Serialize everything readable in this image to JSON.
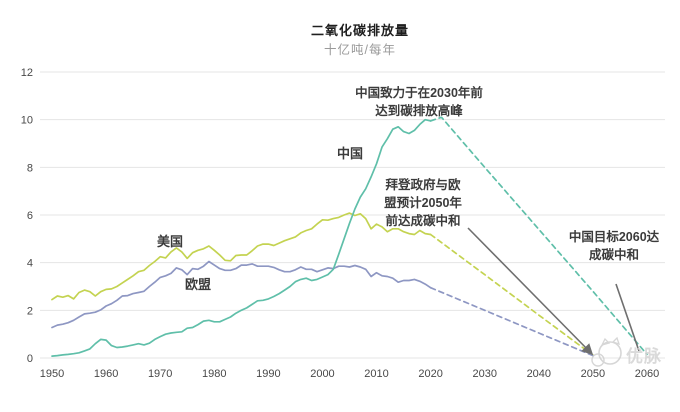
{
  "title": "二氧化碳排放量",
  "subtitle": "十亿吨/每年",
  "series_labels": {
    "usa": "美国",
    "eu": "欧盟",
    "china": "中国"
  },
  "annotations": {
    "china_peak": {
      "lines": [
        "中国致力于在2030年前",
        "达到碳排放高峰"
      ]
    },
    "biden_eu": {
      "lines": [
        "拜登政府与欧",
        "盟预计2050年",
        "前达成碳中和"
      ]
    },
    "china_2060": {
      "lines": [
        "中国目标2060达",
        "成碳中和"
      ]
    }
  },
  "watermark": {
    "text": "优脉"
  },
  "colors": {
    "china": "#5fbfa9",
    "usa": "#c4d351",
    "eu": "#8e97c3",
    "grid": "#e5e5e5",
    "axis_text": "#484848",
    "annotation_text": "#3b3b3b",
    "leader_line": "#6f6f6f",
    "watermark": "#d0d0d0"
  },
  "chart_data": {
    "type": "line",
    "title": "二氧化碳排放量",
    "ylabel": "十亿吨/每年",
    "xlabel": "",
    "xlim": [
      1948,
      2063
    ],
    "ylim": [
      0,
      12
    ],
    "yticks": [
      0,
      2,
      4,
      6,
      8,
      10,
      12
    ],
    "xticks": [
      1950,
      1960,
      1970,
      1980,
      1990,
      2000,
      2010,
      2020,
      2030,
      2040,
      2050,
      2060
    ],
    "grid": "horizontal",
    "legend_position": "inline-labels",
    "series": [
      {
        "name": "美国",
        "color": "#c4d351",
        "style": "solid",
        "points": [
          [
            1950,
            2.45
          ],
          [
            1951,
            2.6
          ],
          [
            1952,
            2.55
          ],
          [
            1953,
            2.62
          ],
          [
            1954,
            2.48
          ],
          [
            1955,
            2.75
          ],
          [
            1956,
            2.85
          ],
          [
            1957,
            2.78
          ],
          [
            1958,
            2.6
          ],
          [
            1959,
            2.78
          ],
          [
            1960,
            2.88
          ],
          [
            1961,
            2.9
          ],
          [
            1962,
            3.0
          ],
          [
            1963,
            3.15
          ],
          [
            1964,
            3.3
          ],
          [
            1965,
            3.45
          ],
          [
            1966,
            3.62
          ],
          [
            1967,
            3.68
          ],
          [
            1968,
            3.88
          ],
          [
            1969,
            4.05
          ],
          [
            1970,
            4.25
          ],
          [
            1971,
            4.2
          ],
          [
            1972,
            4.45
          ],
          [
            1973,
            4.62
          ],
          [
            1974,
            4.45
          ],
          [
            1975,
            4.18
          ],
          [
            1976,
            4.42
          ],
          [
            1977,
            4.52
          ],
          [
            1978,
            4.58
          ],
          [
            1979,
            4.7
          ],
          [
            1980,
            4.52
          ],
          [
            1981,
            4.32
          ],
          [
            1982,
            4.1
          ],
          [
            1983,
            4.08
          ],
          [
            1984,
            4.3
          ],
          [
            1985,
            4.32
          ],
          [
            1986,
            4.32
          ],
          [
            1987,
            4.5
          ],
          [
            1988,
            4.7
          ],
          [
            1989,
            4.78
          ],
          [
            1990,
            4.78
          ],
          [
            1991,
            4.72
          ],
          [
            1992,
            4.82
          ],
          [
            1993,
            4.92
          ],
          [
            1994,
            5.0
          ],
          [
            1995,
            5.08
          ],
          [
            1996,
            5.25
          ],
          [
            1997,
            5.35
          ],
          [
            1998,
            5.42
          ],
          [
            1999,
            5.62
          ],
          [
            2000,
            5.8
          ],
          [
            2001,
            5.78
          ],
          [
            2002,
            5.85
          ],
          [
            2003,
            5.9
          ],
          [
            2004,
            6.0
          ],
          [
            2005,
            6.08
          ],
          [
            2006,
            5.98
          ],
          [
            2007,
            6.05
          ],
          [
            2008,
            5.85
          ],
          [
            2009,
            5.42
          ],
          [
            2010,
            5.62
          ],
          [
            2011,
            5.5
          ],
          [
            2012,
            5.3
          ],
          [
            2013,
            5.42
          ],
          [
            2014,
            5.42
          ],
          [
            2015,
            5.3
          ],
          [
            2016,
            5.22
          ],
          [
            2017,
            5.18
          ],
          [
            2018,
            5.35
          ],
          [
            2019,
            5.22
          ],
          [
            2020,
            5.18
          ]
        ]
      },
      {
        "name": "欧盟",
        "color": "#8e97c3",
        "style": "solid",
        "points": [
          [
            1950,
            1.28
          ],
          [
            1951,
            1.38
          ],
          [
            1952,
            1.42
          ],
          [
            1953,
            1.48
          ],
          [
            1954,
            1.58
          ],
          [
            1955,
            1.72
          ],
          [
            1956,
            1.85
          ],
          [
            1957,
            1.88
          ],
          [
            1958,
            1.92
          ],
          [
            1959,
            2.02
          ],
          [
            1960,
            2.18
          ],
          [
            1961,
            2.28
          ],
          [
            1962,
            2.42
          ],
          [
            1963,
            2.6
          ],
          [
            1964,
            2.62
          ],
          [
            1965,
            2.7
          ],
          [
            1966,
            2.75
          ],
          [
            1967,
            2.8
          ],
          [
            1968,
            3.0
          ],
          [
            1969,
            3.18
          ],
          [
            1970,
            3.38
          ],
          [
            1971,
            3.45
          ],
          [
            1972,
            3.55
          ],
          [
            1973,
            3.78
          ],
          [
            1974,
            3.7
          ],
          [
            1975,
            3.5
          ],
          [
            1976,
            3.75
          ],
          [
            1977,
            3.72
          ],
          [
            1978,
            3.85
          ],
          [
            1979,
            4.05
          ],
          [
            1980,
            3.9
          ],
          [
            1981,
            3.75
          ],
          [
            1982,
            3.68
          ],
          [
            1983,
            3.68
          ],
          [
            1984,
            3.75
          ],
          [
            1985,
            3.9
          ],
          [
            1986,
            3.9
          ],
          [
            1987,
            3.95
          ],
          [
            1988,
            3.85
          ],
          [
            1989,
            3.85
          ],
          [
            1990,
            3.85
          ],
          [
            1991,
            3.8
          ],
          [
            1992,
            3.7
          ],
          [
            1993,
            3.62
          ],
          [
            1994,
            3.62
          ],
          [
            1995,
            3.7
          ],
          [
            1996,
            3.82
          ],
          [
            1997,
            3.72
          ],
          [
            1998,
            3.72
          ],
          [
            1999,
            3.62
          ],
          [
            2000,
            3.7
          ],
          [
            2001,
            3.78
          ],
          [
            2002,
            3.75
          ],
          [
            2003,
            3.85
          ],
          [
            2004,
            3.85
          ],
          [
            2005,
            3.82
          ],
          [
            2006,
            3.88
          ],
          [
            2007,
            3.82
          ],
          [
            2008,
            3.72
          ],
          [
            2009,
            3.42
          ],
          [
            2010,
            3.58
          ],
          [
            2011,
            3.45
          ],
          [
            2012,
            3.42
          ],
          [
            2013,
            3.35
          ],
          [
            2014,
            3.18
          ],
          [
            2015,
            3.25
          ],
          [
            2016,
            3.25
          ],
          [
            2017,
            3.3
          ],
          [
            2018,
            3.22
          ],
          [
            2019,
            3.1
          ],
          [
            2020,
            2.95
          ]
        ]
      },
      {
        "name": "中国",
        "color": "#5fbfa9",
        "style": "solid",
        "points": [
          [
            1950,
            0.08
          ],
          [
            1951,
            0.1
          ],
          [
            1952,
            0.13
          ],
          [
            1953,
            0.15
          ],
          [
            1954,
            0.18
          ],
          [
            1955,
            0.22
          ],
          [
            1956,
            0.3
          ],
          [
            1957,
            0.38
          ],
          [
            1958,
            0.6
          ],
          [
            1959,
            0.78
          ],
          [
            1960,
            0.75
          ],
          [
            1961,
            0.52
          ],
          [
            1962,
            0.44
          ],
          [
            1963,
            0.46
          ],
          [
            1964,
            0.5
          ],
          [
            1965,
            0.55
          ],
          [
            1966,
            0.6
          ],
          [
            1967,
            0.55
          ],
          [
            1968,
            0.62
          ],
          [
            1969,
            0.78
          ],
          [
            1970,
            0.9
          ],
          [
            1971,
            1.0
          ],
          [
            1972,
            1.05
          ],
          [
            1973,
            1.08
          ],
          [
            1974,
            1.1
          ],
          [
            1975,
            1.25
          ],
          [
            1976,
            1.28
          ],
          [
            1977,
            1.4
          ],
          [
            1978,
            1.55
          ],
          [
            1979,
            1.58
          ],
          [
            1980,
            1.52
          ],
          [
            1981,
            1.52
          ],
          [
            1982,
            1.62
          ],
          [
            1983,
            1.72
          ],
          [
            1984,
            1.88
          ],
          [
            1985,
            2.0
          ],
          [
            1986,
            2.1
          ],
          [
            1987,
            2.25
          ],
          [
            1988,
            2.4
          ],
          [
            1989,
            2.42
          ],
          [
            1990,
            2.48
          ],
          [
            1991,
            2.58
          ],
          [
            1992,
            2.7
          ],
          [
            1993,
            2.85
          ],
          [
            1994,
            3.0
          ],
          [
            1995,
            3.2
          ],
          [
            1996,
            3.3
          ],
          [
            1997,
            3.35
          ],
          [
            1998,
            3.25
          ],
          [
            1999,
            3.3
          ],
          [
            2000,
            3.4
          ],
          [
            2001,
            3.5
          ],
          [
            2002,
            3.72
          ],
          [
            2003,
            4.35
          ],
          [
            2004,
            5.0
          ],
          [
            2005,
            5.65
          ],
          [
            2006,
            6.25
          ],
          [
            2007,
            6.75
          ],
          [
            2008,
            7.1
          ],
          [
            2009,
            7.6
          ],
          [
            2010,
            8.15
          ],
          [
            2011,
            8.85
          ],
          [
            2012,
            9.2
          ],
          [
            2013,
            9.6
          ],
          [
            2014,
            9.7
          ],
          [
            2015,
            9.5
          ],
          [
            2016,
            9.42
          ],
          [
            2017,
            9.55
          ],
          [
            2018,
            9.8
          ],
          [
            2019,
            10.0
          ],
          [
            2020,
            9.95
          ]
        ]
      },
      {
        "name": "美国预测(2050碳中和)",
        "color": "#c4d351",
        "style": "dashed",
        "points": [
          [
            2020,
            5.18
          ],
          [
            2030,
            3.5
          ],
          [
            2040,
            1.8
          ],
          [
            2050,
            0.12
          ]
        ]
      },
      {
        "name": "欧盟预测(2050碳中和)",
        "color": "#8e97c3",
        "style": "dashed",
        "points": [
          [
            2020,
            2.95
          ],
          [
            2030,
            2.0
          ],
          [
            2040,
            1.05
          ],
          [
            2050,
            0.1
          ]
        ]
      },
      {
        "name": "中国预测(2060碳中和)",
        "color": "#5fbfa9",
        "style": "dashed",
        "points": [
          [
            2020,
            9.95
          ],
          [
            2022,
            10.1
          ],
          [
            2030,
            8.0
          ],
          [
            2040,
            5.4
          ],
          [
            2050,
            2.8
          ],
          [
            2060,
            0.15
          ]
        ]
      }
    ]
  }
}
